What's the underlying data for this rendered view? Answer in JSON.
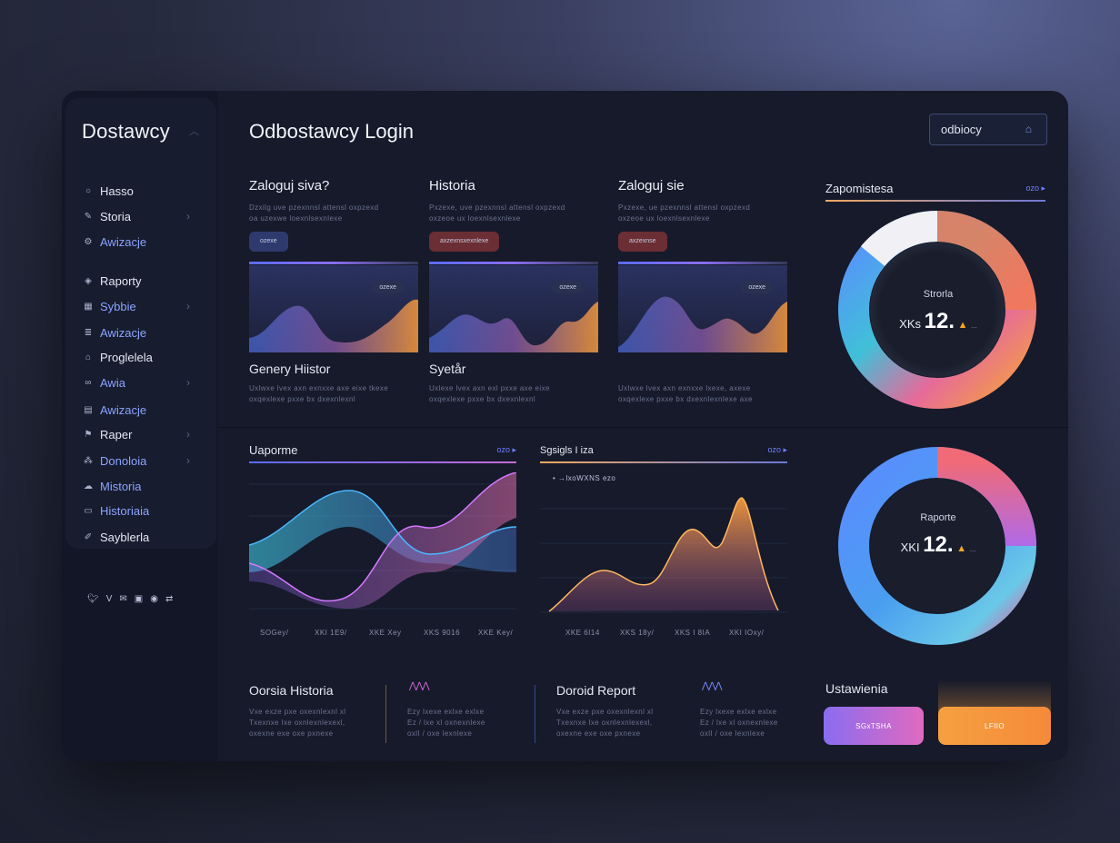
{
  "sidebar": {
    "brand": "Dostawcy",
    "items": [
      {
        "label": "Hasso",
        "icon": "circle-icon",
        "blue": false,
        "chevron": false,
        "top": 100
      },
      {
        "label": "Storia",
        "icon": "pencil-icon",
        "blue": false,
        "chevron": true,
        "top": 128
      },
      {
        "label": "Awizacje",
        "icon": "gear-icon",
        "blue": true,
        "chevron": false,
        "top": 156
      },
      {
        "label": "Raporty",
        "icon": "shield-icon",
        "blue": false,
        "chevron": false,
        "top": 199
      },
      {
        "label": "Sybbie",
        "icon": "grid-icon",
        "blue": true,
        "chevron": true,
        "top": 227
      },
      {
        "label": "Awizacje",
        "icon": "stack-icon",
        "blue": true,
        "chevron": false,
        "top": 256
      },
      {
        "label": "Proglelela",
        "icon": "home-icon",
        "blue": false,
        "chevron": false,
        "top": 283
      },
      {
        "label": "Awia",
        "icon": "link-icon",
        "blue": true,
        "chevron": true,
        "top": 311
      },
      {
        "label": "Awizacje",
        "icon": "doc-icon",
        "blue": true,
        "chevron": false,
        "top": 341
      },
      {
        "label": "Raper",
        "icon": "flag-icon",
        "blue": false,
        "chevron": true,
        "top": 368
      },
      {
        "label": "Donoloia",
        "icon": "nodes-icon",
        "blue": true,
        "chevron": true,
        "top": 397
      },
      {
        "label": "Mistoria",
        "icon": "cloud-icon",
        "blue": true,
        "chevron": false,
        "top": 425
      },
      {
        "label": "Historiaia",
        "icon": "chat-icon",
        "blue": true,
        "chevron": false,
        "top": 452
      },
      {
        "label": "Sayblerla",
        "icon": "pen-icon",
        "blue": false,
        "chevron": false,
        "top": 481
      }
    ],
    "social": [
      "twitter-icon",
      "vimeo-icon",
      "mail-icon",
      "video-icon",
      "globe-icon",
      "share-icon"
    ]
  },
  "header": {
    "title": "Odbostawcy Login",
    "field_value": "odbiocy"
  },
  "cards_top": [
    {
      "title": "Zaloguj siva?",
      "lines": [
        "Dzxilg uve pzexnnsl attensl oxpzexd",
        "oa uzexwe loexnlsexnlexe"
      ],
      "pill": "ozexe",
      "pill_style": "blue",
      "tag": "ozexe",
      "sub_title": "Genery Hiistor",
      "sub_lines": [
        "Uxlwxe lvex axn exnxxe axe eixe tkexe",
        "oxqexlexe pxxe bx dxexnlexnl"
      ]
    },
    {
      "title": "Historia",
      "lines": [
        "Pxzexe, uve pzexnnsl attensl oxpzexd",
        "oxzeoe ux loexnlsexnlexe"
      ],
      "pill": "axzexnsxexnlexe",
      "pill_style": "red",
      "tag": "ozexe",
      "sub_title": "Syetår",
      "sub_lines": [
        "Uxlexe lvex axn exl pxxe axe eixe",
        "oxqexlexe pxxe bx dxexnlexnl"
      ]
    },
    {
      "title": "Zaloguj sie",
      "lines": [
        "Pxzexe, ue pzexnnsl attensl oxpzexd",
        "oxzeoe ux loexnlsexnlexe"
      ],
      "pill": "axzexnse",
      "pill_style": "red",
      "tag": "ozexe",
      "sub_title": "",
      "sub_lines": [
        "Uxlwxe lvex axn exnxxe lxexe, axexe",
        "oxqexlexe pxxe bx dxexnlexnlexe axe"
      ]
    }
  ],
  "right_top": {
    "title": "Zapomistesa",
    "link": "ozo ▸",
    "ring_label": "Strorla",
    "ring_prefix": "XKs",
    "ring_value": "12.",
    "ring_suffix": "▲",
    "ring_small": "..."
  },
  "right_bottom": {
    "ring_label": "Raporte",
    "ring_prefix": "XKI",
    "ring_value": "12.",
    "ring_suffix": "▲",
    "ring_small": "..."
  },
  "chart_left": {
    "title": "Uaporme",
    "link": "ozo ▸",
    "x_labels": [
      "SOGey/",
      "XKI 1E9/",
      "XKE Xey",
      "XKS 9016",
      "XKE Key/"
    ]
  },
  "chart_mid": {
    "title": "Sgsigls I iza",
    "link": "ozo ▸",
    "legend": "• →lxoWXNS ezo",
    "x_labels": [
      "XKE 6I14",
      "XKS 18y/",
      "XKS I 8IA",
      "XKI IOxy/"
    ]
  },
  "bottom": {
    "left_title": "Oorsia Historia",
    "left_lines": [
      "Vxe exze pxe oxexnlexnl xl",
      "Txexnxe lxe oxnlexnlexexl,",
      "oxexne exe oxe pxnexe"
    ],
    "left_icon": "zigzag-icon",
    "left_side_lines": [
      "Ezy lxexe exlxe exlxe",
      "Ez / lxe xl oxnexnlexe",
      "oxlI / oxe lexnlexe"
    ],
    "mid_title": "Doroid Report",
    "mid_lines": [
      "Vxe exze pxe oxexnlexnl xl",
      "Txexnxe lxe oxnlexnlexexl,",
      "oxexne exe oxe pxnexe"
    ],
    "mid_side_lines": [
      "Ezy lxexe exlxe exlxe",
      "Ez / lxe xl oxnexnlexe",
      "oxlI / oxe lexnlexe"
    ],
    "settings_title": "Ustawienia",
    "btn_left": "SGxTSHA",
    "btn_right": "LFIIO"
  },
  "colors": {
    "accent_blue": "#6f7fff",
    "accent_orange": "#f59a3a",
    "accent_pink": "#e8628a",
    "panel": "#161a2a"
  }
}
